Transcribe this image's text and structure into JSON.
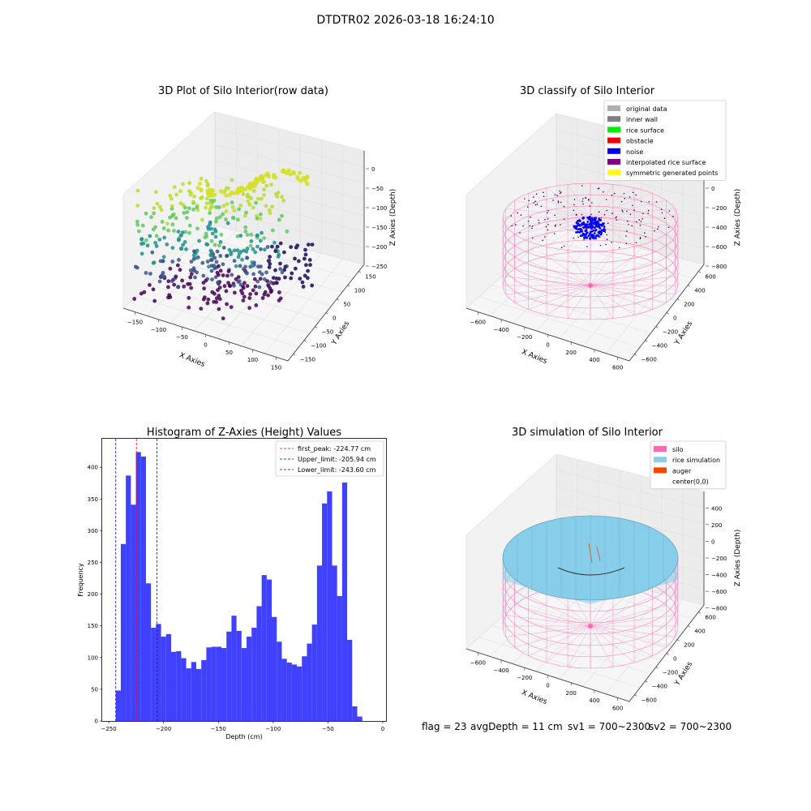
{
  "figure": {
    "suptitle": "DTDTR02 2026-03-18 16:24:10"
  },
  "status": {
    "flag": "flag = 23",
    "avg_depth": "avgDepth = 11 cm",
    "sv1": "sv1 = 700~2300",
    "sv2": "sv2 = 700~2300"
  },
  "chart_data": [
    {
      "type": "scatter",
      "title": "3D Plot of Silo Interior(row data)",
      "xlabel": "X Axies",
      "ylabel": "Y Axies",
      "zlabel": "Z Axies (Depth)",
      "x_ticks": [
        "−150",
        "−100",
        "−50",
        "0",
        "50",
        "100",
        "150"
      ],
      "y_ticks": [
        "−150",
        "−100",
        "−50",
        "0",
        "50",
        "100",
        "150"
      ],
      "z_ticks": [
        "0",
        "−50",
        "−100",
        "−150",
        "−200",
        "−250"
      ],
      "colormap": "viridis",
      "colors": [
        "#440154",
        "#3b528b",
        "#21918c",
        "#5ec962",
        "#b8de29"
      ]
    },
    {
      "type": "scatter",
      "title": "3D classify of Silo Interior",
      "xlabel": "X Axies",
      "ylabel": "Y Axies",
      "zlabel": "Z Axies (Depth)",
      "x_ticks": [
        "−600",
        "−400",
        "−200",
        "0",
        "200",
        "400",
        "600"
      ],
      "y_ticks": [
        "−600",
        "−400",
        "−200",
        "0",
        "200",
        "400",
        "600"
      ],
      "z_ticks": [
        "200",
        "0",
        "−200",
        "−400",
        "−600",
        "−800"
      ],
      "legend": [
        {
          "label": "original data",
          "color": "#b0b0b0"
        },
        {
          "label": "inner wall",
          "color": "#808080"
        },
        {
          "label": "rice surface",
          "color": "#00ee00"
        },
        {
          "label": "obstacle",
          "color": "#ee0000"
        },
        {
          "label": "noise",
          "color": "#0000ee"
        },
        {
          "label": "interpolated rice surface",
          "color": "#800080"
        },
        {
          "label": "symmetric generated points",
          "color": "#ffff00"
        }
      ],
      "legend_position": "top-right",
      "wireframe_color": "#ff69b4"
    },
    {
      "type": "bar",
      "title": "Histogram of Z-Axies (Height) Values",
      "xlabel": "Depth (cm)",
      "ylabel": "Frequency",
      "xlim": [
        -256,
        3
      ],
      "ylim": [
        0,
        445
      ],
      "x_ticks": [
        -250,
        -200,
        -150,
        -100,
        -50,
        0
      ],
      "x_tick_labels": [
        "−250",
        "−200",
        "−150",
        "−100",
        "−50",
        "0"
      ],
      "y_ticks": [
        0,
        50,
        100,
        150,
        200,
        250,
        300,
        350,
        400
      ],
      "bar_color": "#4040ff",
      "bin_start": -243.6,
      "bin_width": 4.59,
      "values": [
        48,
        279,
        387,
        341,
        424,
        417,
        217,
        147,
        153,
        133,
        137,
        109,
        110,
        99,
        83,
        93,
        82,
        96,
        116,
        117,
        117,
        115,
        141,
        166,
        142,
        115,
        133,
        147,
        181,
        230,
        223,
        164,
        125,
        98,
        92,
        89,
        86,
        102,
        122,
        152,
        245,
        343,
        362,
        245,
        197,
        376,
        128,
        23,
        7
      ],
      "lines": [
        {
          "label": "first_peak: -224.77 cm",
          "x": -224.77,
          "color": "#ff0000"
        },
        {
          "label": "Upper_limit: -205.94 cm",
          "x": -205.94,
          "color": "#0000ff"
        },
        {
          "label": "Lower_limit: -243.60 cm",
          "x": -243.6,
          "color": "#0000ff"
        }
      ],
      "legend_position": "top-right"
    },
    {
      "type": "area",
      "title": "3D simulation of Silo Interior",
      "xlabel": "X Axies",
      "ylabel": "Y Axies",
      "zlabel": "Z Axies (Depth)",
      "x_ticks": [
        "−600",
        "−400",
        "−200",
        "0",
        "200",
        "400",
        "600"
      ],
      "y_ticks": [
        "−600",
        "−400",
        "−200",
        "0",
        "200",
        "400",
        "600"
      ],
      "z_ticks": [
        "400",
        "200",
        "0",
        "−200",
        "−400",
        "−600",
        "−800"
      ],
      "legend": [
        {
          "label": "silo",
          "color": "#ff69b4"
        },
        {
          "label": "rice simulation",
          "color": "#87ceeb"
        },
        {
          "label": "auger",
          "color": "#ff4500"
        },
        {
          "label": "center(0,0)",
          "color": "#ffffff"
        }
      ],
      "legend_position": "top-right"
    }
  ]
}
